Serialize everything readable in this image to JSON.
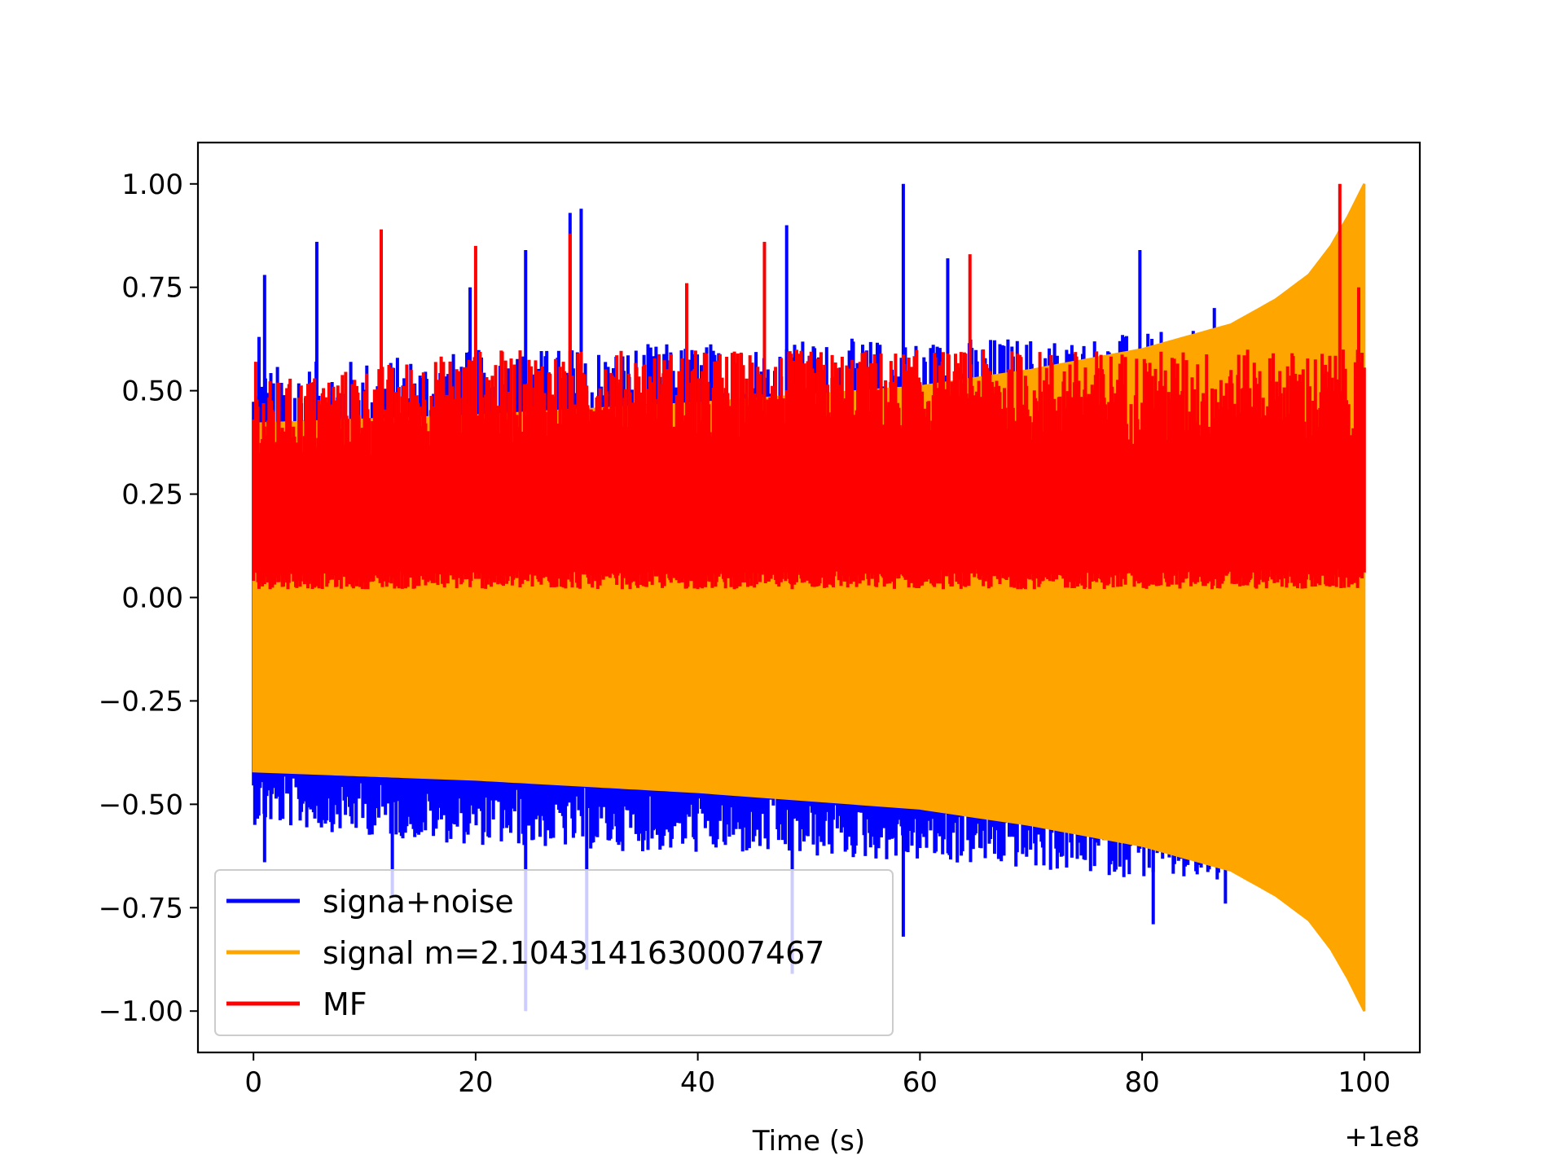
{
  "chart_data": {
    "type": "line",
    "title": "",
    "xlabel": "Time (s)",
    "ylabel": "",
    "x_offset_label": "+1e8",
    "xlim": [
      -5,
      105
    ],
    "ylim": [
      -1.1,
      1.1
    ],
    "x_ticks": [
      0,
      20,
      40,
      60,
      80,
      100
    ],
    "x_tick_labels": [
      "0",
      "20",
      "40",
      "60",
      "80",
      "100"
    ],
    "y_ticks": [
      -1.0,
      -0.75,
      -0.5,
      -0.25,
      0.0,
      0.25,
      0.5,
      0.75,
      1.0
    ],
    "y_tick_labels": [
      "−1.00",
      "−0.75",
      "−0.50",
      "−0.25",
      "0.00",
      "0.25",
      "0.50",
      "0.75",
      "1.00"
    ],
    "grid": false,
    "legend_position": "lower-left",
    "series": [
      {
        "name": "signa+noise",
        "color": "#0000ff",
        "x_range": [
          0,
          87.5
        ],
        "upper_envelope": [
          [
            0,
            0.56
          ],
          [
            20,
            0.6
          ],
          [
            40,
            0.62
          ],
          [
            60,
            0.63
          ],
          [
            80,
            0.64
          ],
          [
            87.5,
            0.65
          ]
        ],
        "lower_envelope": [
          [
            0,
            -0.55
          ],
          [
            20,
            -0.6
          ],
          [
            40,
            -0.62
          ],
          [
            60,
            -0.64
          ],
          [
            80,
            -0.68
          ],
          [
            87.5,
            -0.7
          ]
        ],
        "peaks": [
          [
            0.5,
            0.63
          ],
          [
            1.0,
            0.78
          ],
          [
            5.7,
            0.86
          ],
          [
            11.5,
            0.88
          ],
          [
            19.5,
            0.75
          ],
          [
            24.5,
            0.84
          ],
          [
            28.5,
            0.93
          ],
          [
            29.5,
            0.94
          ],
          [
            48.0,
            0.9
          ],
          [
            58.5,
            1.0
          ],
          [
            62.5,
            0.82
          ],
          [
            79.8,
            0.84
          ],
          [
            86.5,
            0.7
          ]
        ],
        "troughs": [
          [
            1.0,
            -0.64
          ],
          [
            12.5,
            -0.72
          ],
          [
            24.5,
            -1.0
          ],
          [
            30.0,
            -0.9
          ],
          [
            48.5,
            -0.91
          ],
          [
            58.5,
            -0.82
          ],
          [
            81.0,
            -0.79
          ],
          [
            87.5,
            -0.74
          ]
        ]
      },
      {
        "name": "signal m=2.1043141630007467",
        "color": "#ffa500",
        "x_range": [
          0,
          100
        ],
        "envelope": [
          [
            0,
            0.42
          ],
          [
            20,
            0.44
          ],
          [
            40,
            0.47
          ],
          [
            60,
            0.51
          ],
          [
            70,
            0.55
          ],
          [
            80,
            0.6
          ],
          [
            88,
            0.66
          ],
          [
            92,
            0.72
          ],
          [
            95,
            0.78
          ],
          [
            97,
            0.85
          ],
          [
            98.5,
            0.92
          ],
          [
            100,
            1.0
          ]
        ]
      },
      {
        "name": "MF",
        "color": "#ff0000",
        "x_range": [
          0,
          100
        ],
        "baseline": 0.02,
        "upper_envelope": [
          [
            0,
            0.52
          ],
          [
            20,
            0.6
          ],
          [
            40,
            0.6
          ],
          [
            60,
            0.6
          ],
          [
            80,
            0.6
          ],
          [
            100,
            0.6
          ]
        ],
        "peaks": [
          [
            0.2,
            0.57
          ],
          [
            11.5,
            0.89
          ],
          [
            20.0,
            0.85
          ],
          [
            28.5,
            0.88
          ],
          [
            39.0,
            0.76
          ],
          [
            46.0,
            0.86
          ],
          [
            64.5,
            0.83
          ],
          [
            97.8,
            1.0
          ],
          [
            99.5,
            0.75
          ]
        ]
      }
    ]
  }
}
